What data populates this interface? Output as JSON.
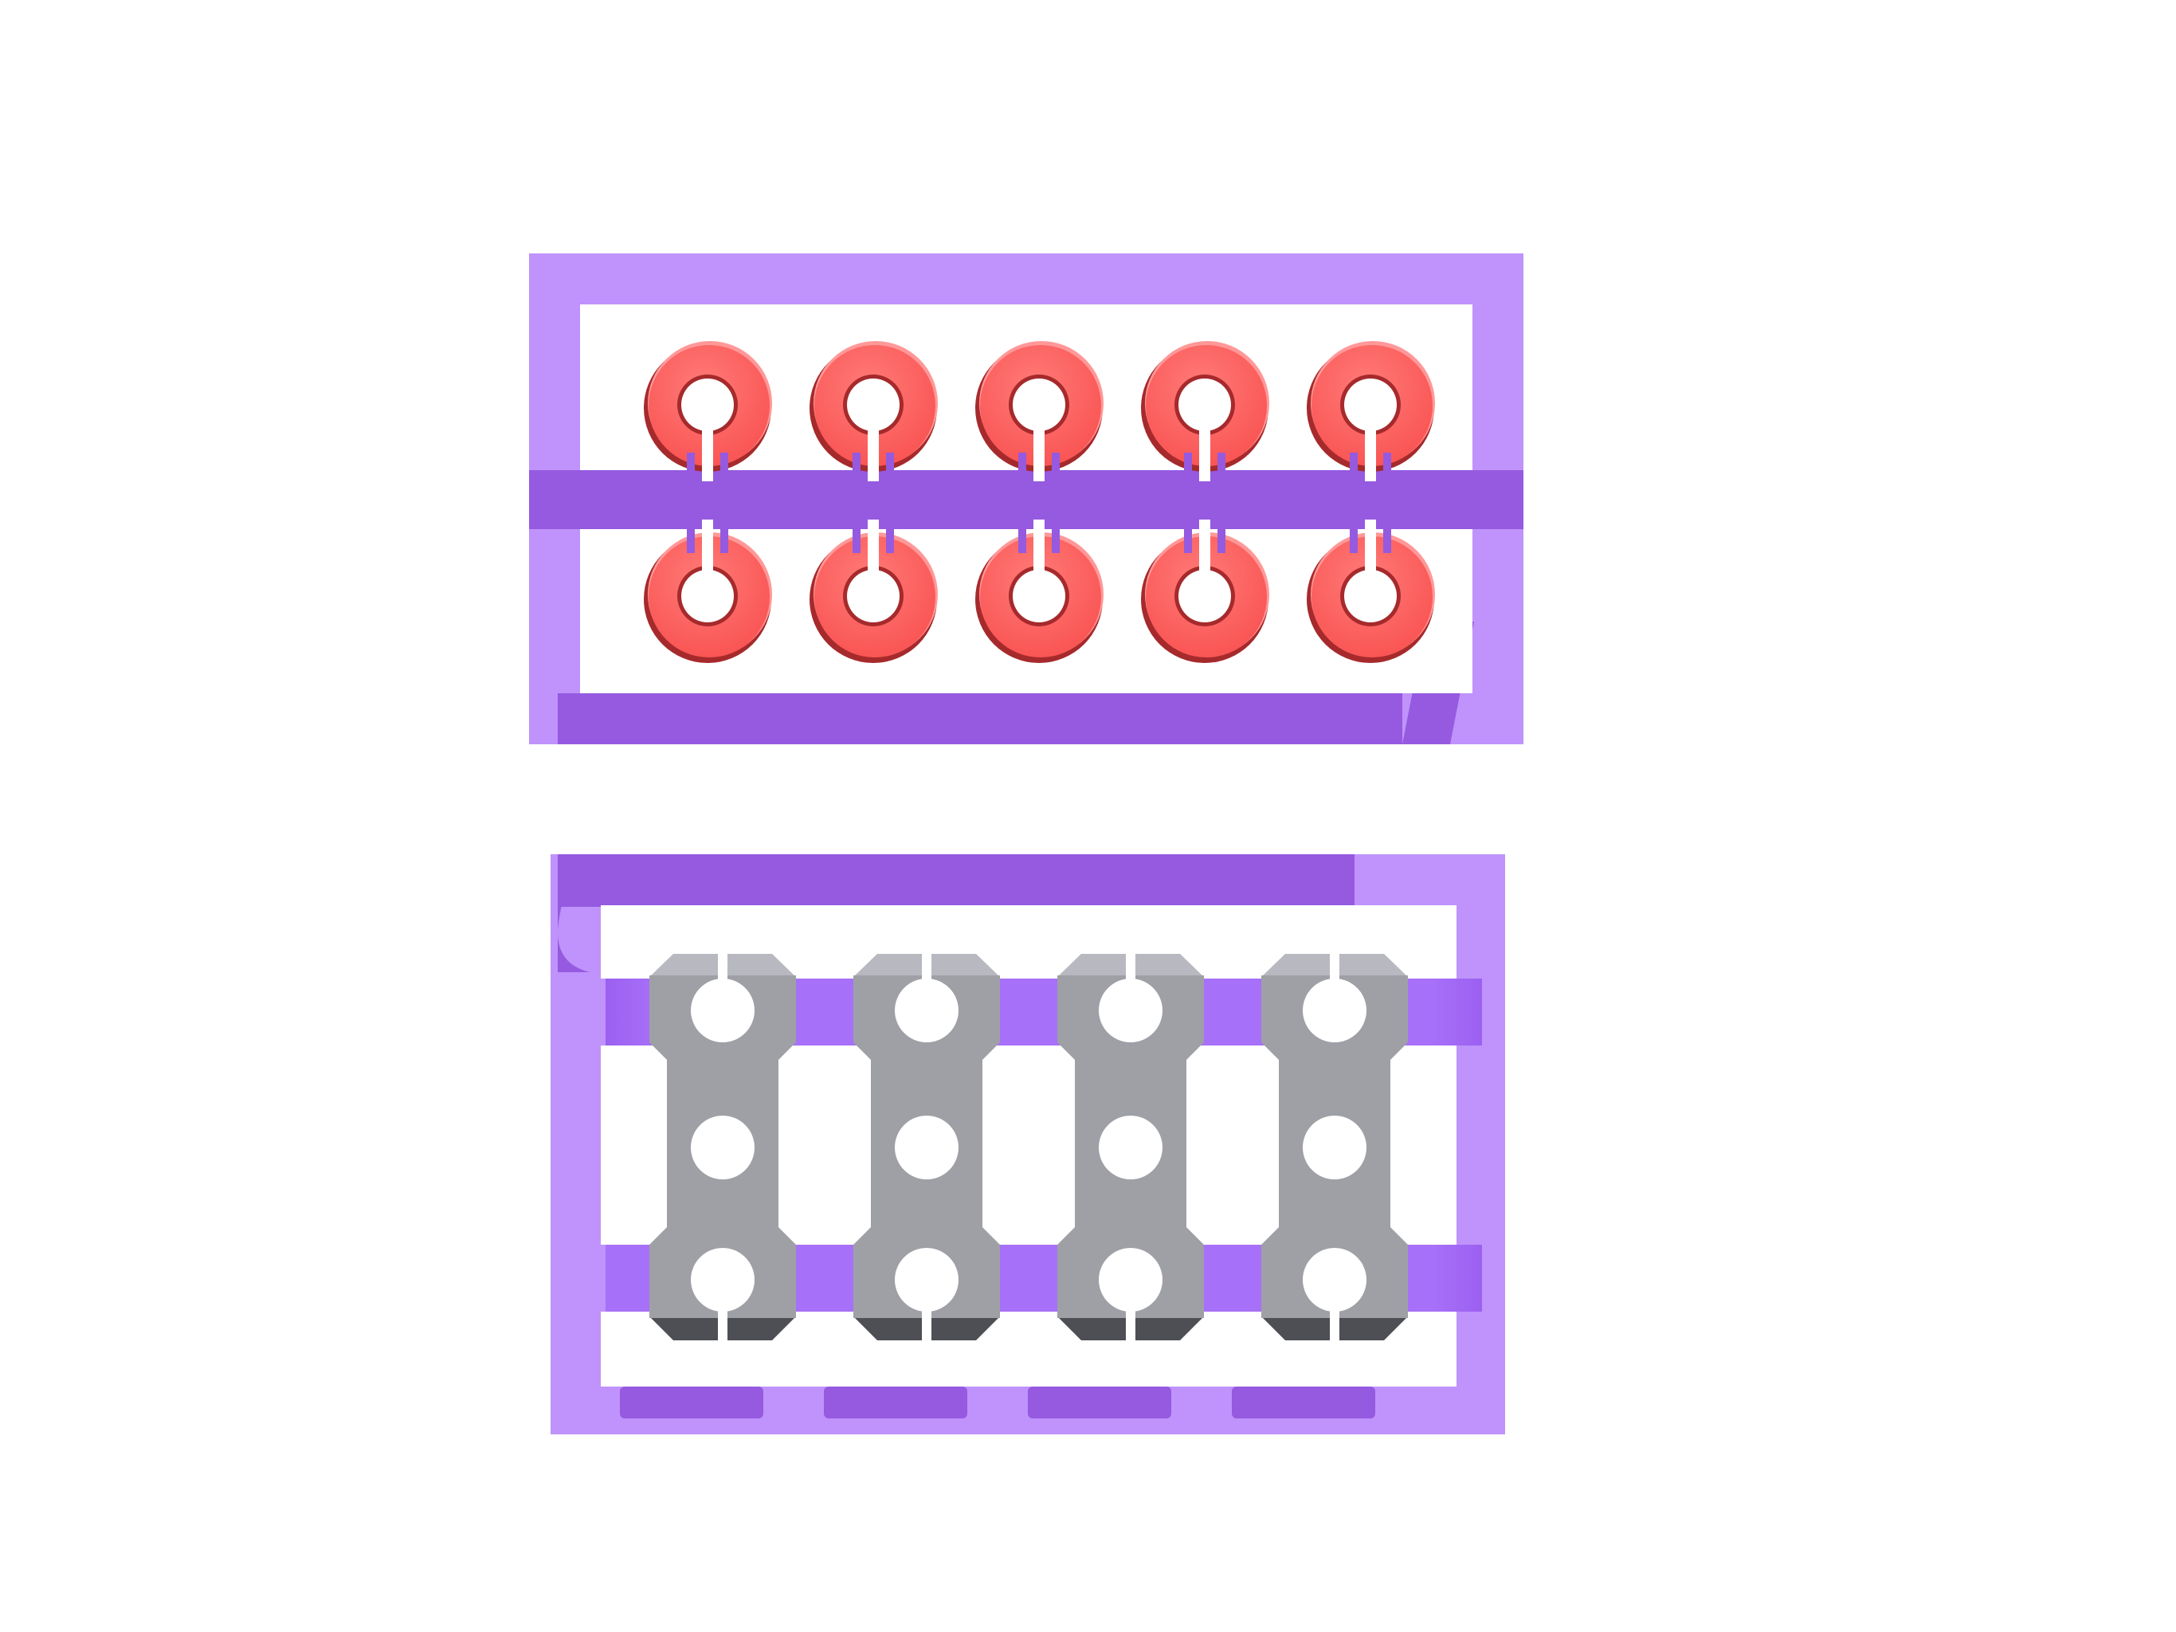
{
  "colors": {
    "background": "#ffffff",
    "tray_light": "#bf93fb",
    "tray_dark": "#955ae0",
    "tray_mid": "#a770f8",
    "ring_red": "#ff6563",
    "ring_highlight": "#ff9898",
    "ring_shadow": "#a62a2c",
    "bracket_gray": "#9fa0a6",
    "bracket_top": "#b8b9c0",
    "bracket_bottom": "#4d4f55"
  },
  "upper_tray": {
    "ring_icon": "washer-ring-icon",
    "rows": 2,
    "ring_count_per_row": 5
  },
  "lower_tray": {
    "bracket_icon": "three-hole-bracket-icon",
    "bracket_count": 4
  }
}
